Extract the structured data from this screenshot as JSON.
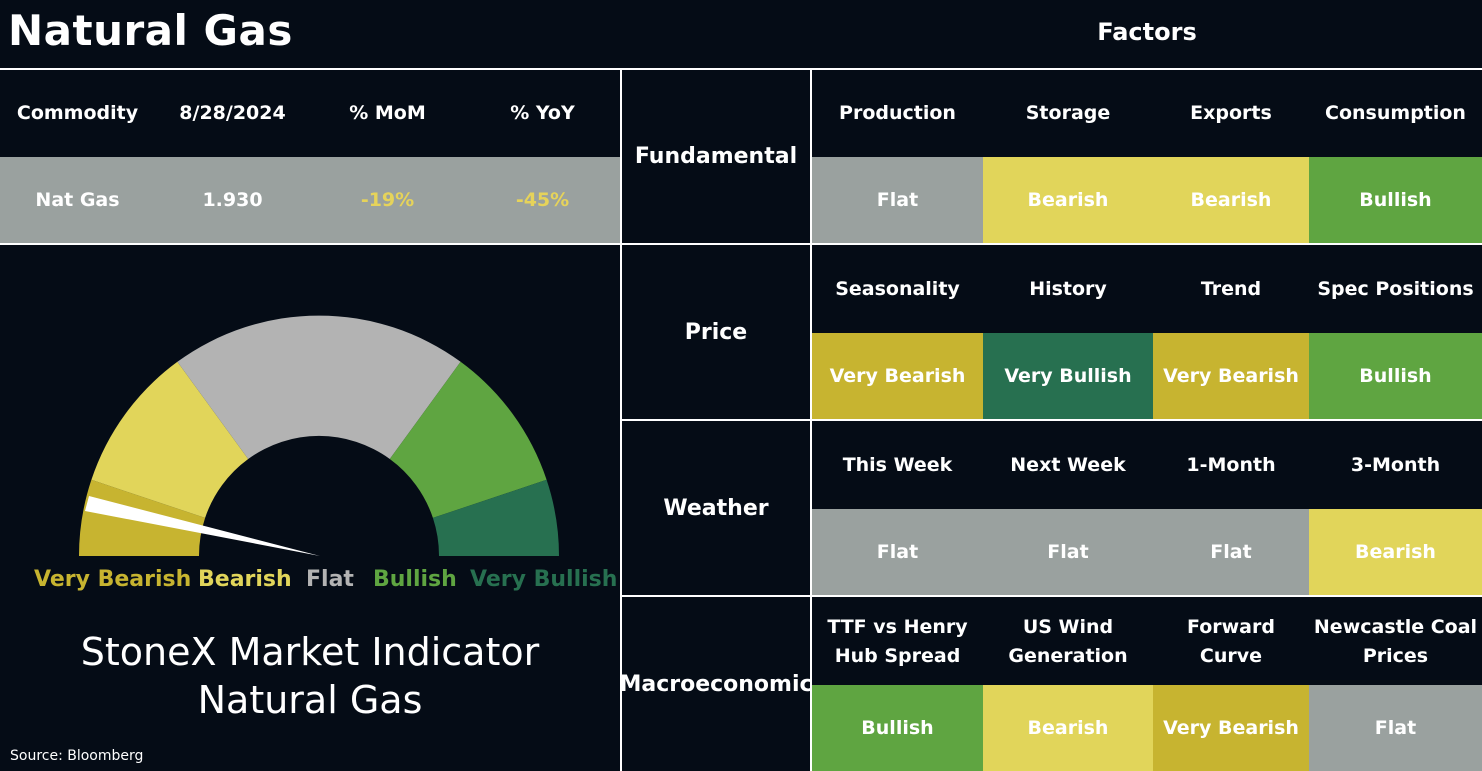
{
  "page": {
    "title": "Natural Gas",
    "factors_title": "Factors",
    "source": "Source: Bloomberg"
  },
  "commodity_table": {
    "headers": [
      "Commodity",
      "8/28/2024",
      "% MoM",
      "% YoY"
    ],
    "row": {
      "commodity": "Nat Gas",
      "price": "1.930",
      "mom": "-19%",
      "yoy": "-45%"
    },
    "negative_color": "#e6d35a",
    "row_bg": "#9aa19f"
  },
  "gauge": {
    "segments": [
      {
        "label": "Very Bearish",
        "color": "#c7b430"
      },
      {
        "label": "Bearish",
        "color": "#e1d55a"
      },
      {
        "label": "Flat",
        "color": "#b3b3b3"
      },
      {
        "label": "Bullish",
        "color": "#5fa541"
      },
      {
        "label": "Very Bullish",
        "color": "#277050"
      }
    ],
    "needle_reading": "Very Bearish",
    "title_line1": "StoneX Market Indicator",
    "title_line2": "Natural Gas"
  },
  "factors": [
    {
      "group": "Fundamental",
      "items": [
        {
          "name": "Production",
          "value": "Flat"
        },
        {
          "name": "Storage",
          "value": "Bearish"
        },
        {
          "name": "Exports",
          "value": "Bearish"
        },
        {
          "name": "Consumption",
          "value": "Bullish"
        }
      ]
    },
    {
      "group": "Price",
      "items": [
        {
          "name": "Seasonality",
          "value": "Very Bearish"
        },
        {
          "name": "History",
          "value": "Very Bullish"
        },
        {
          "name": "Trend",
          "value": "Very Bearish"
        },
        {
          "name": "Spec Positions",
          "value": "Bullish"
        }
      ]
    },
    {
      "group": "Weather",
      "items": [
        {
          "name": "This Week",
          "value": "Flat"
        },
        {
          "name": "Next Week",
          "value": "Flat"
        },
        {
          "name": "1-Month",
          "value": "Flat"
        },
        {
          "name": "3-Month",
          "value": "Bearish"
        }
      ]
    },
    {
      "group": "Macroeconomic",
      "items": [
        {
          "name": "TTF vs Henry\nHub Spread",
          "value": "Bullish"
        },
        {
          "name": "US Wind\nGeneration",
          "value": "Bearish"
        },
        {
          "name": "Forward\nCurve",
          "value": "Very Bearish"
        },
        {
          "name": "Newcastle Coal\nPrices",
          "value": "Flat"
        }
      ]
    }
  ],
  "rating_colors": {
    "Flat": "#9aa19f",
    "Bearish": "#e1d55a",
    "Very Bearish": "#c7b430",
    "Bullish": "#5fa541",
    "Very Bullish": "#277050"
  }
}
